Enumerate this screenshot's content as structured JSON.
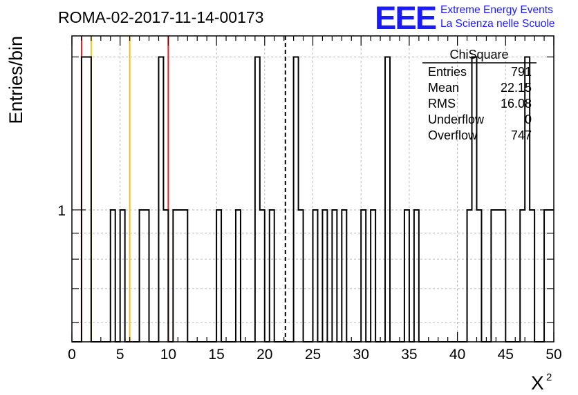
{
  "chart_data": {
    "type": "histogram",
    "title": "ROMA-02-2017-11-14-00173",
    "xlabel": "X",
    "xlabel_superscript": "2",
    "ylabel": "Entries/bin",
    "xlim": [
      0,
      50
    ],
    "ylim": [
      0.55,
      2.2
    ],
    "y_log_scale": true,
    "grid": true,
    "bin_width": 0.5,
    "x_tick_labels": [
      "0",
      "5",
      "10",
      "15",
      "20",
      "25",
      "30",
      "35",
      "40",
      "45",
      "50"
    ],
    "y_tick_labels": [
      "1"
    ],
    "bins": [
      {
        "x": 1.0,
        "y": 2
      },
      {
        "x": 1.5,
        "y": 2
      },
      {
        "x": 4.0,
        "y": 1
      },
      {
        "x": 5.0,
        "y": 1
      },
      {
        "x": 7.0,
        "y": 1
      },
      {
        "x": 7.5,
        "y": 1
      },
      {
        "x": 9.0,
        "y": 2
      },
      {
        "x": 9.5,
        "y": 1
      },
      {
        "x": 10.5,
        "y": 1
      },
      {
        "x": 11.0,
        "y": 1
      },
      {
        "x": 11.5,
        "y": 1
      },
      {
        "x": 15.0,
        "y": 1
      },
      {
        "x": 17.0,
        "y": 1
      },
      {
        "x": 19.0,
        "y": 2
      },
      {
        "x": 19.5,
        "y": 1
      },
      {
        "x": 20.5,
        "y": 1
      },
      {
        "x": 23.0,
        "y": 2
      },
      {
        "x": 23.5,
        "y": 1
      },
      {
        "x": 25.0,
        "y": 1
      },
      {
        "x": 26.0,
        "y": 1
      },
      {
        "x": 27.0,
        "y": 1
      },
      {
        "x": 28.0,
        "y": 1
      },
      {
        "x": 30.0,
        "y": 1
      },
      {
        "x": 31.0,
        "y": 1
      },
      {
        "x": 32.5,
        "y": 2
      },
      {
        "x": 34.5,
        "y": 1
      },
      {
        "x": 35.5,
        "y": 1
      },
      {
        "x": 41.0,
        "y": 1
      },
      {
        "x": 41.5,
        "y": 2
      },
      {
        "x": 42.0,
        "y": 1
      },
      {
        "x": 43.5,
        "y": 1
      },
      {
        "x": 44.0,
        "y": 1
      },
      {
        "x": 44.5,
        "y": 1
      },
      {
        "x": 46.5,
        "y": 1
      },
      {
        "x": 47.0,
        "y": 2
      },
      {
        "x": 47.5,
        "y": 1
      },
      {
        "x": 49.0,
        "y": 1
      },
      {
        "x": 49.5,
        "y": 1
      }
    ],
    "reference_lines": [
      {
        "x": 1.0,
        "color": "#dd2222",
        "style": "solid"
      },
      {
        "x": 2.0,
        "color": "#f0c020",
        "style": "solid"
      },
      {
        "x": 6.0,
        "color": "#f0c020",
        "style": "solid"
      },
      {
        "x": 10.0,
        "color": "#dd2222",
        "style": "solid"
      },
      {
        "x": 22.15,
        "color": "#000000",
        "style": "dashed"
      }
    ],
    "stats_box": {
      "title": "ChiSquare",
      "rows": [
        {
          "label": "Entries",
          "value": "791"
        },
        {
          "label": "Mean",
          "value": "22.15"
        },
        {
          "label": "RMS",
          "value": "16.08"
        },
        {
          "label": "Underflow",
          "value": "0"
        },
        {
          "label": "Overflow",
          "value": "747"
        }
      ]
    }
  },
  "logo": {
    "mark": "EEE",
    "line1": "Extreme Energy Events",
    "line2": "La Scienza nelle Scuole",
    "color": "#1a1aff"
  }
}
